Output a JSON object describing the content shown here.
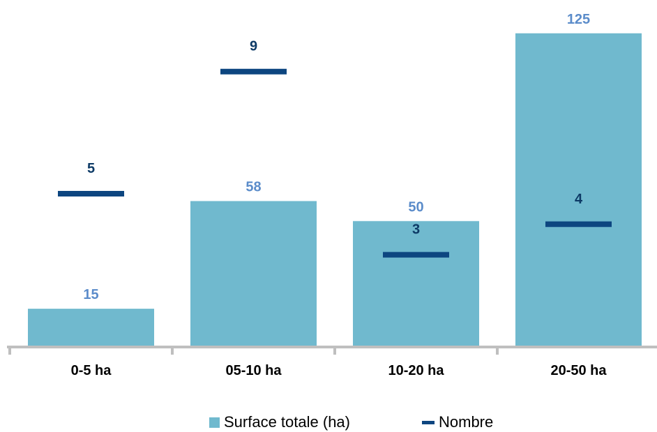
{
  "chart_data": {
    "type": "bar",
    "categories": [
      "0-5 ha",
      "05-10 ha",
      "10-20 ha",
      "20-50 ha"
    ],
    "series": [
      {
        "name": "Surface totale (ha)",
        "kind": "bar",
        "values": [
          15,
          58,
          50,
          125
        ],
        "color": "#70B9CE",
        "label_color": "#5B8CCA"
      },
      {
        "name": "Nombre",
        "kind": "marker",
        "values": [
          5,
          9,
          3,
          4
        ],
        "color": "#0D4680",
        "label_color": "#0D3A66"
      }
    ],
    "primary_ylim": [
      0,
      128
    ],
    "secondary_ylim": [
      0,
      10.5
    ],
    "axis_color": "#BFBFBF",
    "grid": false,
    "legend_position": "bottom"
  },
  "legend": {
    "items": [
      {
        "label": "Surface totale (ha)",
        "color": "#70B9CE",
        "shape": "square"
      },
      {
        "label": "Nombre",
        "color": "#0D4680",
        "shape": "dash"
      }
    ]
  }
}
